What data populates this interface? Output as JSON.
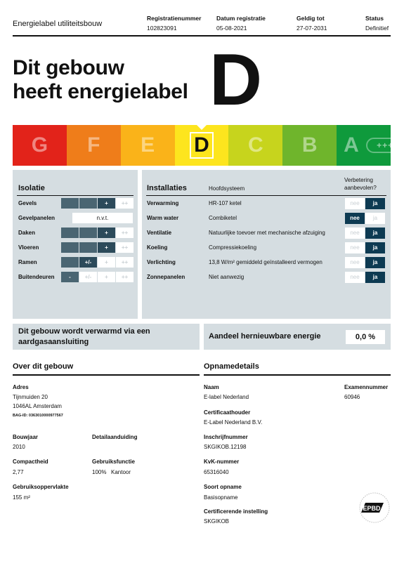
{
  "header": {
    "doc_title": "Energielabel utiliteitsbouw",
    "columns": [
      {
        "label": "Registratienummer",
        "value": "102823091"
      },
      {
        "label": "Datum registratie",
        "value": "05-08-2021"
      },
      {
        "label": "Geldig tot",
        "value": "27-07-2031"
      },
      {
        "label": "Status",
        "value": "Definitief"
      }
    ]
  },
  "headline": {
    "line1": "Dit gebouw",
    "line2": "heeft energielabel",
    "label": "D"
  },
  "scale": {
    "active": "D",
    "plus_text": "+++++",
    "segments": [
      {
        "letter": "G",
        "color": "#e2231a"
      },
      {
        "letter": "F",
        "color": "#ef7d1a"
      },
      {
        "letter": "E",
        "color": "#fab319"
      },
      {
        "letter": "D",
        "color": "#fde51e"
      },
      {
        "letter": "C",
        "color": "#c7d41d"
      },
      {
        "letter": "B",
        "color": "#6fb52c"
      },
      {
        "letter": "A",
        "color": "#0f9a3c"
      }
    ]
  },
  "isolatie": {
    "title": "Isolatie",
    "rows": [
      {
        "name": "Gevels",
        "cells": [
          "",
          "",
          "+",
          "++"
        ]
      },
      {
        "name": "Gevelpanelen",
        "nvt": "n.v.t."
      },
      {
        "name": "Daken",
        "cells": [
          "",
          "",
          "+",
          "++"
        ]
      },
      {
        "name": "Vloeren",
        "cells": [
          "",
          "",
          "+",
          "++"
        ]
      },
      {
        "name": "Ramen",
        "cells": [
          "",
          "+/-",
          "+",
          "++"
        ]
      },
      {
        "name": "Buitendeuren",
        "cells": [
          "-",
          "+/-",
          "+",
          "++"
        ]
      }
    ]
  },
  "installaties": {
    "title": "Installaties",
    "subtitle": "Hoofdsysteem",
    "verbetering": "Verbetering aanbevolen?",
    "rows": [
      {
        "name": "Verwarming",
        "system": "HR-107 ketel",
        "nee": "nee",
        "ja": "ja"
      },
      {
        "name": "Warm water",
        "system": "Combiketel",
        "nee": "nee",
        "ja": "ja"
      },
      {
        "name": "Ventilatie",
        "system": "Natuurlijke toevoer met mechanische afzuiging",
        "nee": "nee",
        "ja": "ja"
      },
      {
        "name": "Koeling",
        "system": "Compressiekoeling",
        "nee": "nee",
        "ja": "ja"
      },
      {
        "name": "Verlichting",
        "system": "13,8 W/m² gemiddeld geïnstalleerd vermogen",
        "nee": "nee",
        "ja": "ja"
      },
      {
        "name": "Zonnepanelen",
        "system": "Niet aanwezig",
        "nee": "nee",
        "ja": "ja"
      }
    ]
  },
  "gas": {
    "line1": "Dit gebouw wordt verwarmd via een",
    "line2": "aardgasaansluiting"
  },
  "renewable": {
    "label": "Aandeel hernieuwbare energie",
    "value": "0,0 %"
  },
  "over": {
    "title": "Over dit gebouw",
    "adres_label": "Adres",
    "adres_line1": "Tijnmuiden 20",
    "adres_line2": "1046AL Amsterdam",
    "bag_id": "BAG-ID: 0363010000977567",
    "bouwjaar_label": "Bouwjaar",
    "bouwjaar": "2010",
    "detail_label": "Detailaanduiding",
    "detail": "",
    "compact_label": "Compactheid",
    "compact": "2,77",
    "functie_label": "Gebruiksfunctie",
    "functie_pct": "100%",
    "functie": "Kantoor",
    "opp_label": "Gebruiksoppervlakte",
    "opp": "155 m²"
  },
  "opname": {
    "title": "Opnamedetails",
    "naam_label": "Naam",
    "naam": "E-label Nederland",
    "exam_label": "Examennummer",
    "exam": "60946",
    "cert_label": "Certificaathouder",
    "cert": "E-Label Nederland B.V.",
    "inschr_label": "Inschrijfnummer",
    "inschr": "SKGIKOB.12198",
    "kvk_label": "KvK-nummer",
    "kvk": "65316040",
    "soort_label": "Soort opname",
    "soort": "Basisopname",
    "inst_label": "Certificerende instelling",
    "inst": "SKGIKOB"
  },
  "logo": {
    "name": "epbd-logo-icon",
    "text": "EPBD"
  }
}
